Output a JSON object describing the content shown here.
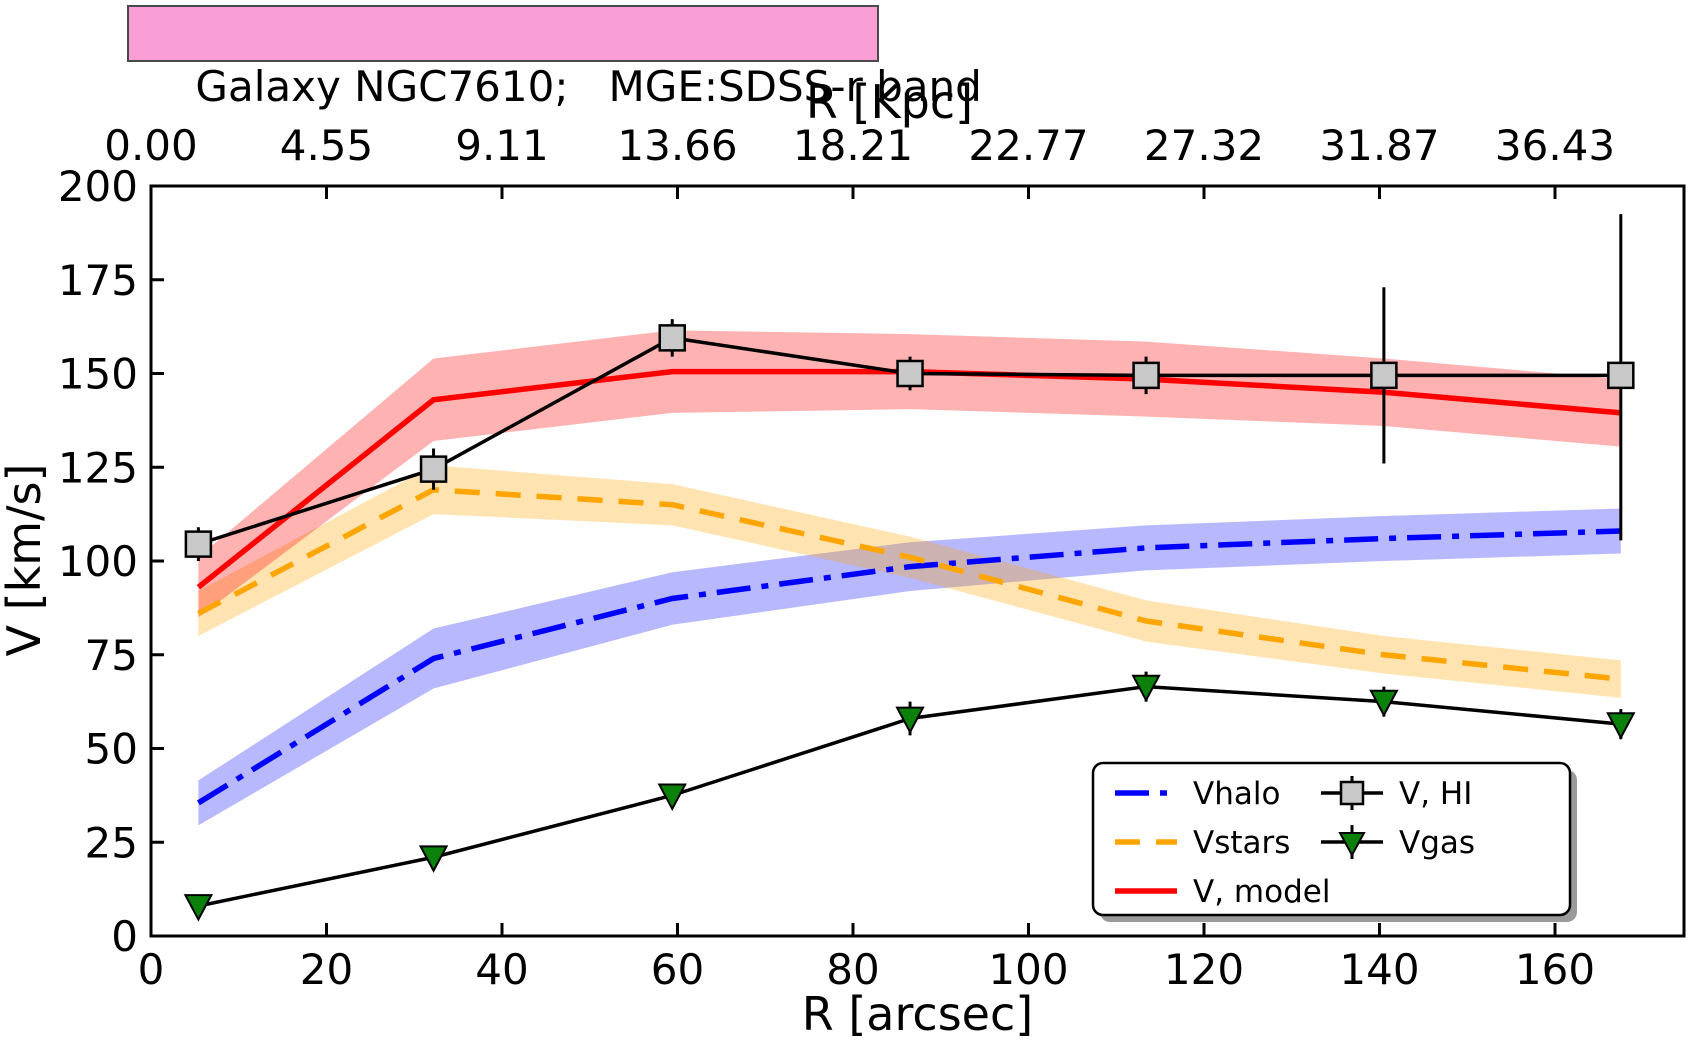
{
  "page": {
    "background": "#ffffff"
  },
  "title_box": {
    "text": "Galaxy NGC7610;   MGE:SDSS-r band",
    "background": "#fa9ed6",
    "border_color": "#4a4a4a"
  },
  "chart_data": {
    "type": "line",
    "title": "Galaxy NGC7610;   MGE:SDSS-r band",
    "xlabel": "R [arcsec]",
    "ylabel": "V [km/s]",
    "top_axis_label": "R [Kpc]",
    "xlim": [
      0,
      174.7
    ],
    "ylim": [
      0,
      200
    ],
    "grid": false,
    "x_ticks": {
      "values": [
        0,
        20,
        40,
        60,
        80,
        100,
        120,
        140,
        160
      ],
      "labels": [
        "0",
        "20",
        "40",
        "60",
        "80",
        "100",
        "120",
        "140",
        "160"
      ]
    },
    "y_ticks": {
      "values": [
        0,
        25,
        50,
        75,
        100,
        125,
        150,
        175,
        200
      ],
      "labels": [
        "0",
        "25",
        "50",
        "75",
        "100",
        "125",
        "150",
        "175",
        "200"
      ]
    },
    "top_ticks": {
      "values_arcsec": [
        0,
        20,
        40,
        60,
        80,
        100,
        120,
        140,
        160
      ],
      "labels": [
        "0.00",
        "4.55",
        "9.11",
        "13.66",
        "18.21",
        "22.77",
        "27.32",
        "31.87",
        "36.43"
      ]
    },
    "x": [
      5.4,
      32.2,
      59.4,
      86.5,
      113.4,
      140.5,
      167.5
    ],
    "series": [
      {
        "name": "Vhalo",
        "type": "band-line",
        "color": "#0000ff",
        "band_color": "rgba(0,0,255,0.28)",
        "dash": "34 11 7 11",
        "width": 5.5,
        "values": [
          35.5,
          74,
          90,
          98.5,
          103.5,
          106,
          108
        ],
        "band_halfwidth": [
          6,
          8,
          7,
          6.5,
          6,
          6,
          6
        ]
      },
      {
        "name": "Vstars",
        "type": "band-line",
        "color": "#ffa500",
        "band_color": "rgba(255,165,0,0.30)",
        "dash": "25 16",
        "width": 5.5,
        "values": [
          86,
          119,
          115,
          101,
          84,
          75,
          68.5
        ],
        "band_halfwidth": [
          6,
          6.5,
          5.5,
          5.5,
          5.5,
          5,
          5
        ]
      },
      {
        "name": "V, model",
        "type": "band-line",
        "color": "#ff0000",
        "band_color": "rgba(255,0,0,0.30)",
        "dash": "",
        "width": 5.5,
        "values": [
          93,
          143,
          150.5,
          150.5,
          148.5,
          145,
          139.5
        ],
        "band_halfwidth": [
          8,
          11,
          11,
          10,
          10,
          9,
          9
        ]
      },
      {
        "name": "Vgas",
        "type": "marker-line",
        "color": "#000000",
        "width": 3.5,
        "marker": "triangle-down",
        "marker_fill": "#0b800b",
        "marker_edge": "#000000",
        "marker_size": 26,
        "values": [
          8,
          21,
          37.5,
          58,
          66.5,
          62.5,
          56.5
        ],
        "err_lo": [
          3,
          3,
          3,
          4.5,
          4,
          4,
          4
        ],
        "err_hi": [
          3,
          3,
          3,
          4.5,
          4,
          4,
          4
        ]
      },
      {
        "name": "V, HI",
        "type": "marker-line",
        "color": "#000000",
        "width": 3.5,
        "marker": "square",
        "marker_fill": "#c8c8c8",
        "marker_edge": "#000000",
        "marker_size": 25,
        "values": [
          104.5,
          124.5,
          159.5,
          150,
          149.5,
          149.5,
          149.5
        ],
        "err_lo": [
          4.5,
          5.5,
          5,
          4.5,
          5,
          23.5,
          44
        ],
        "err_hi": [
          4.5,
          5.5,
          5,
          4.5,
          5,
          23.5,
          43
        ]
      }
    ],
    "legend": {
      "position": "lower right",
      "columns": [
        [
          "Vhalo",
          "Vstars",
          "V, model"
        ],
        [
          "V, HI",
          "Vgas"
        ]
      ]
    }
  }
}
